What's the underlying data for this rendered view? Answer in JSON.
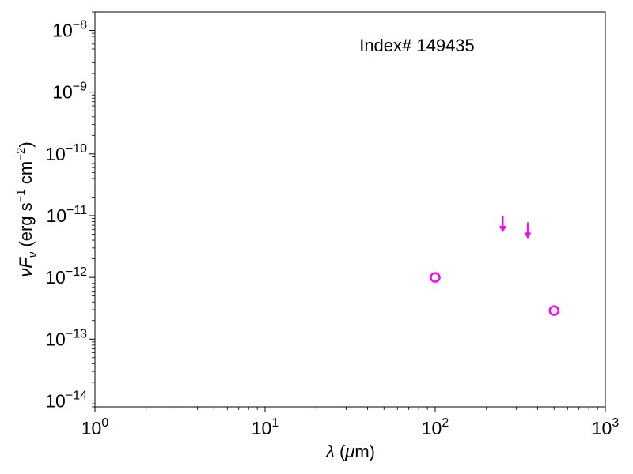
{
  "chart_data": {
    "type": "scatter",
    "title": "",
    "annotation": "Index# 149435",
    "xlabel": "λ (μm)",
    "ylabel": "νF_ν (erg s^-1 cm^-2)",
    "xscale": "log",
    "yscale": "log",
    "xlim": [
      1,
      1000
    ],
    "ylim": [
      8e-15,
      2e-08
    ],
    "grid": false,
    "legend": "none",
    "color": "#ff00ff",
    "x_tick_labels": [
      {
        "base": "10",
        "exp": "0",
        "value": 1
      },
      {
        "base": "10",
        "exp": "1",
        "value": 10
      },
      {
        "base": "10",
        "exp": "2",
        "value": 100
      },
      {
        "base": "10",
        "exp": "3",
        "value": 1000
      }
    ],
    "y_tick_labels": [
      {
        "base": "10",
        "exp": "−14",
        "value": 1e-14
      },
      {
        "base": "10",
        "exp": "−13",
        "value": 1e-13
      },
      {
        "base": "10",
        "exp": "−12",
        "value": 1e-12
      },
      {
        "base": "10",
        "exp": "−11",
        "value": 1e-11
      },
      {
        "base": "10",
        "exp": "−10",
        "value": 1e-10
      },
      {
        "base": "10",
        "exp": "−9",
        "value": 1e-09
      },
      {
        "base": "10",
        "exp": "−8",
        "value": 1e-08
      }
    ],
    "series": [
      {
        "marker": "open-circle",
        "points": [
          {
            "x": 100,
            "y": 1e-12
          },
          {
            "x": 500,
            "y": 2.9e-13
          }
        ]
      },
      {
        "marker": "upper-limit-arrow",
        "points": [
          {
            "x": 250,
            "y": 1e-11
          },
          {
            "x": 350,
            "y": 7.8e-12
          }
        ]
      }
    ]
  }
}
